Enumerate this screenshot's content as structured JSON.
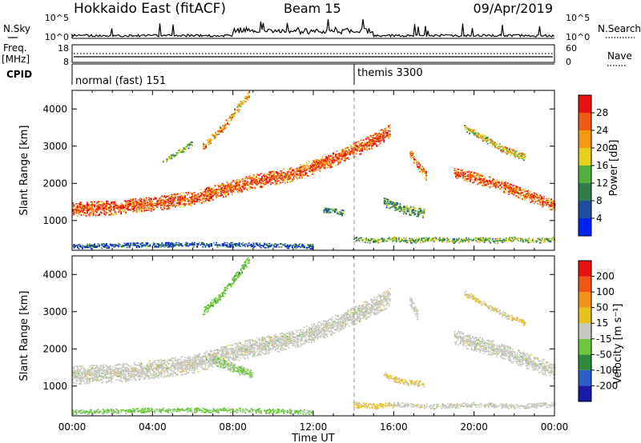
{
  "header": {
    "station": "Hokkaido East (fitACF)",
    "beam": "Beam 15",
    "date": "09/Apr/2019"
  },
  "top_panel": {
    "left_label": "N.Sky",
    "right_label": "N.Search",
    "left_ticks": [
      "10^5",
      "10^0"
    ],
    "right_ticks": [
      "10^5",
      "10^0"
    ]
  },
  "freq_panel": {
    "left_label_1": "Freq.",
    "left_label_2": "[MHz]",
    "left_ticks": [
      "18",
      "8"
    ],
    "right_ticks": [
      "60",
      "0"
    ],
    "right_label": "Nave"
  },
  "cpid_panel": {
    "label": "CPID",
    "modes": [
      {
        "name": "normal (fast) 151",
        "start_hour": 0
      },
      {
        "name": "themis 3300",
        "start_hour": 14
      }
    ]
  },
  "colors": {
    "power": [
      "#0022ee",
      "#1e4ea0",
      "#2e7d4a",
      "#52b040",
      "#e8d01a",
      "#f59a10",
      "#ef5a10",
      "#e81010"
    ],
    "velocity": [
      "#1a1aa8",
      "#2a5ec8",
      "#2e8a3a",
      "#6ac83a",
      "#c8c8c0",
      "#e8c020",
      "#f29018",
      "#ee5810",
      "#e81010"
    ]
  },
  "chart_data": [
    {
      "type": "heatmap",
      "name": "power",
      "xlabel": "",
      "ylabel": "Slant Range [km]",
      "xlim": [
        0,
        24
      ],
      "ylim": [
        200,
        4500
      ],
      "y_ticks": [
        1000,
        2000,
        3000,
        4000
      ],
      "colorbar": {
        "label": "Power [dB]",
        "ticks": [
          "4",
          "8",
          "12",
          "16",
          "20",
          "24",
          "28"
        ],
        "range": [
          0,
          32
        ]
      },
      "bands": [
        {
          "points": [
            [
              0,
              1300
            ],
            [
              2,
              1350
            ],
            [
              4,
              1450
            ],
            [
              6,
              1600
            ],
            [
              8,
              1900
            ],
            [
              9,
              2050
            ],
            [
              10,
              2150
            ],
            [
              11,
              2250
            ],
            [
              12,
              2450
            ],
            [
              13,
              2650
            ],
            [
              14,
              2900
            ],
            [
              15,
              3150
            ],
            [
              15.8,
              3400
            ]
          ],
          "width": 380,
          "value": 26
        },
        {
          "points": [
            [
              16.8,
              2800
            ],
            [
              17.2,
              2500
            ],
            [
              17.6,
              2200
            ]
          ],
          "width": 250,
          "value": 24
        },
        {
          "points": [
            [
              19,
              2300
            ],
            [
              20,
              2150
            ],
            [
              21,
              2000
            ],
            [
              22,
              1800
            ],
            [
              23,
              1600
            ],
            [
              24,
              1400
            ]
          ],
          "width": 300,
          "value": 26
        },
        {
          "points": [
            [
              19.5,
              3500
            ],
            [
              20.5,
              3200
            ],
            [
              21.5,
              2900
            ],
            [
              22.5,
              2700
            ]
          ],
          "width": 180,
          "value": 18
        },
        {
          "points": [
            [
              6.5,
              3000
            ],
            [
              7.5,
              3500
            ],
            [
              8.2,
              4000
            ],
            [
              8.8,
              4400
            ]
          ],
          "width": 200,
          "value": 22
        },
        {
          "points": [
            [
              4.5,
              2600
            ],
            [
              5.5,
              2900
            ],
            [
              6,
              3100
            ]
          ],
          "width": 120,
          "value": 14
        },
        {
          "points": [
            [
              14,
              500
            ],
            [
              15,
              450
            ],
            [
              16,
              500
            ],
            [
              17,
              450
            ],
            [
              18,
              500
            ],
            [
              19,
              450
            ],
            [
              20,
              500
            ],
            [
              21,
              450
            ],
            [
              22,
              500
            ],
            [
              23,
              450
            ],
            [
              24,
              500
            ]
          ],
          "width": 120,
          "value": 14
        },
        {
          "points": [
            [
              12.5,
              1300
            ],
            [
              13.5,
              1200
            ]
          ],
          "width": 150,
          "value": 10
        },
        {
          "points": [
            [
              15.5,
              1500
            ],
            [
              16.5,
              1300
            ],
            [
              17.5,
              1200
            ]
          ],
          "width": 250,
          "value": 12
        },
        {
          "points": [
            [
              0,
              300
            ],
            [
              4,
              350
            ],
            [
              8,
              350
            ],
            [
              12,
              300
            ]
          ],
          "width": 120,
          "value": 6
        }
      ]
    },
    {
      "type": "heatmap",
      "name": "velocity",
      "xlabel": "Time UT",
      "ylabel": "Slant Range [km]",
      "xlim": [
        0,
        24
      ],
      "ylim": [
        200,
        4500
      ],
      "y_ticks": [
        1000,
        2000,
        3000,
        4000
      ],
      "x_ticks": [
        "00:00",
        "04:00",
        "08:00",
        "12:00",
        "16:00",
        "20:00",
        "00:00"
      ],
      "colorbar": {
        "label": "Velocity [m s⁻¹]",
        "ticks": [
          "200",
          "100",
          "50",
          "15",
          "-15",
          "-50",
          "-100",
          "-200"
        ],
        "range": [
          -250,
          250
        ]
      },
      "bands": [
        {
          "points": [
            [
              0,
              1300
            ],
            [
              2,
              1350
            ],
            [
              4,
              1450
            ],
            [
              6,
              1600
            ],
            [
              8,
              1900
            ],
            [
              9,
              2050
            ],
            [
              10,
              2150
            ],
            [
              11,
              2250
            ],
            [
              12,
              2450
            ],
            [
              13,
              2650
            ],
            [
              14,
              2900
            ],
            [
              15,
              3150
            ],
            [
              15.8,
              3400
            ]
          ],
          "width": 500,
          "value": 0
        },
        {
          "points": [
            [
              16.8,
              3300
            ],
            [
              17.2,
              2900
            ]
          ],
          "width": 300,
          "value": 0
        },
        {
          "points": [
            [
              19,
              2300
            ],
            [
              20,
              2150
            ],
            [
              21,
              2000
            ],
            [
              22,
              1800
            ],
            [
              23,
              1600
            ],
            [
              24,
              1400
            ]
          ],
          "width": 400,
          "value": 0
        },
        {
          "points": [
            [
              19.5,
              3500
            ],
            [
              20.5,
              3200
            ],
            [
              21.5,
              2900
            ],
            [
              22.5,
              2700
            ]
          ],
          "width": 150,
          "value": 30
        },
        {
          "points": [
            [
              6.5,
              3000
            ],
            [
              7.5,
              3500
            ],
            [
              8.2,
              4000
            ],
            [
              8.8,
              4400
            ]
          ],
          "width": 200,
          "value": -60
        },
        {
          "points": [
            [
              14,
              500
            ],
            [
              15,
              450
            ],
            [
              16,
              500
            ]
          ],
          "width": 150,
          "value": 40
        },
        {
          "points": [
            [
              16,
              500
            ],
            [
              18,
              450
            ],
            [
              20,
              500
            ],
            [
              22,
              450
            ],
            [
              24,
              500
            ]
          ],
          "width": 120,
          "value": 0
        },
        {
          "points": [
            [
              15.5,
              1300
            ],
            [
              16.5,
              1100
            ],
            [
              17.5,
              1050
            ]
          ],
          "width": 150,
          "value": 30
        },
        {
          "points": [
            [
              0,
              300
            ],
            [
              4,
              350
            ],
            [
              8,
              350
            ],
            [
              12,
              300
            ]
          ],
          "width": 120,
          "value": -40
        },
        {
          "points": [
            [
              7,
              1700
            ],
            [
              8,
              1500
            ],
            [
              9,
              1300
            ]
          ],
          "width": 250,
          "value": -30
        }
      ]
    }
  ]
}
